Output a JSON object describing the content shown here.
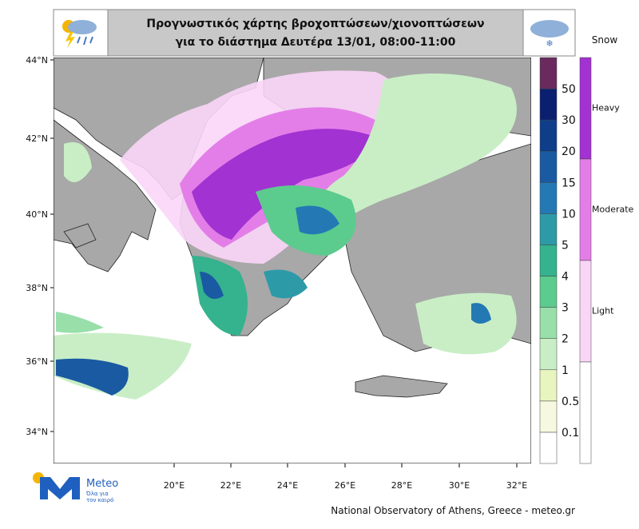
{
  "header": {
    "title_lines": [
      "Προγνωστικός χάρτης βροχοπτώσεων/χιονοπτώσεων",
      "για το διάστημα  Δευτέρα 13/01, 08:00-11:00"
    ]
  },
  "map": {
    "lat_labels": [
      "44°N",
      "42°N",
      "40°N",
      "38°N",
      "36°N",
      "34°N"
    ],
    "lon_labels": [
      "20°E",
      "22°E",
      "24°E",
      "26°E",
      "28°E",
      "30°E",
      "32°E"
    ]
  },
  "legend": {
    "levels": [
      {
        "label": "0.1",
        "color": "#f6f9e0"
      },
      {
        "label": "0.5",
        "color": "#e9f5bf"
      },
      {
        "label": "1",
        "color": "#c9eec6"
      },
      {
        "label": "2",
        "color": "#98dfaa"
      },
      {
        "label": "3",
        "color": "#5ccb8e"
      },
      {
        "label": "4",
        "color": "#35b28e"
      },
      {
        "label": "5",
        "color": "#2d9aa8"
      },
      {
        "label": "10",
        "color": "#2479b4"
      },
      {
        "label": "15",
        "color": "#1a5aa2"
      },
      {
        "label": "20",
        "color": "#0e3d8a"
      },
      {
        "label": "30",
        "color": "#0b1f70"
      },
      {
        "label": "50",
        "color": "#6a2a5e"
      }
    ],
    "top_color": "#2b0a3d"
  },
  "snow_legend": {
    "title": "Snow",
    "levels": [
      {
        "label": "Heavy",
        "color": "#a232d2"
      },
      {
        "label": "Moderate",
        "color": "#e37ee8"
      },
      {
        "label": "Light",
        "color": "#f9d6f7"
      }
    ]
  },
  "footer": "National Observatory of Athens, Greece - meteo.gr",
  "logo": {
    "name": "Meteo",
    "tagline_lines": [
      "Όλα για",
      "τον καιρό"
    ]
  }
}
